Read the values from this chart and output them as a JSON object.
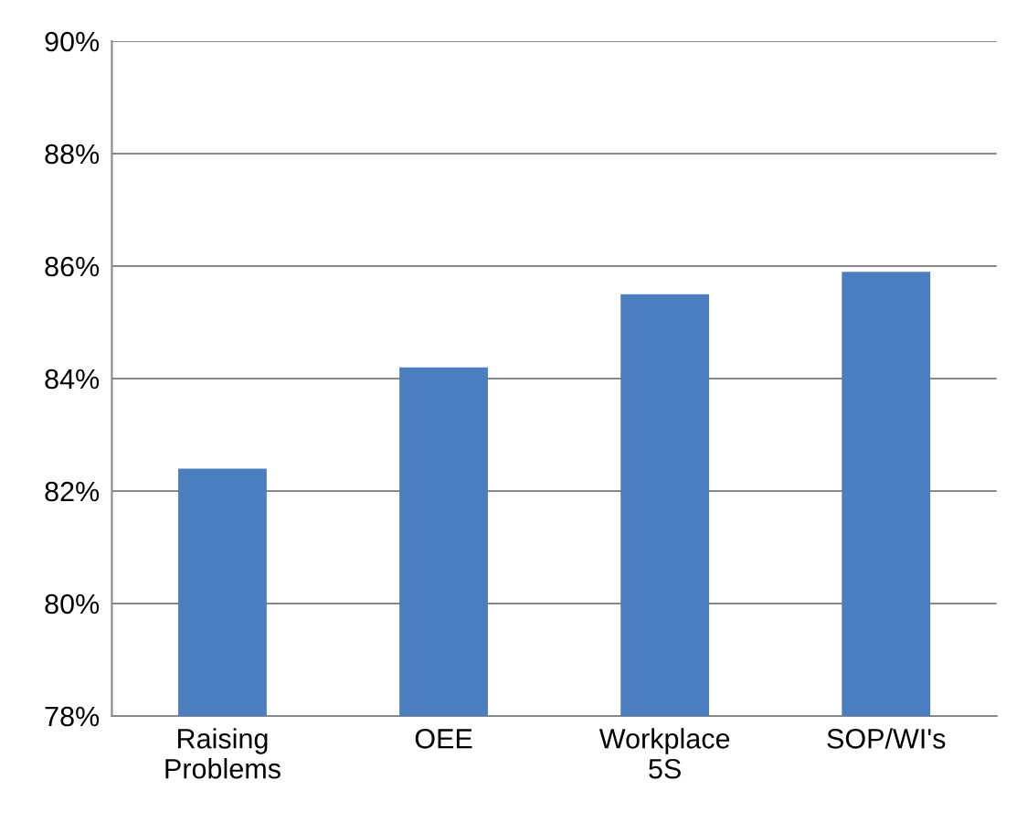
{
  "chart_data": {
    "type": "bar",
    "categories": [
      "Raising\nProblems",
      "OEE",
      "Workplace\n5S",
      "SOP/WI's"
    ],
    "values": [
      82.4,
      84.2,
      85.5,
      85.9
    ],
    "color": "#4a7ebf",
    "ylim": [
      78,
      90
    ],
    "yticks": [
      {
        "value": 78,
        "label": "78%"
      },
      {
        "value": 80,
        "label": "80%"
      },
      {
        "value": 82,
        "label": "82%"
      },
      {
        "value": 84,
        "label": "84%"
      },
      {
        "value": 86,
        "label": "86%"
      },
      {
        "value": 88,
        "label": "88%"
      },
      {
        "value": 90,
        "label": "90%"
      }
    ],
    "grid": "y"
  }
}
